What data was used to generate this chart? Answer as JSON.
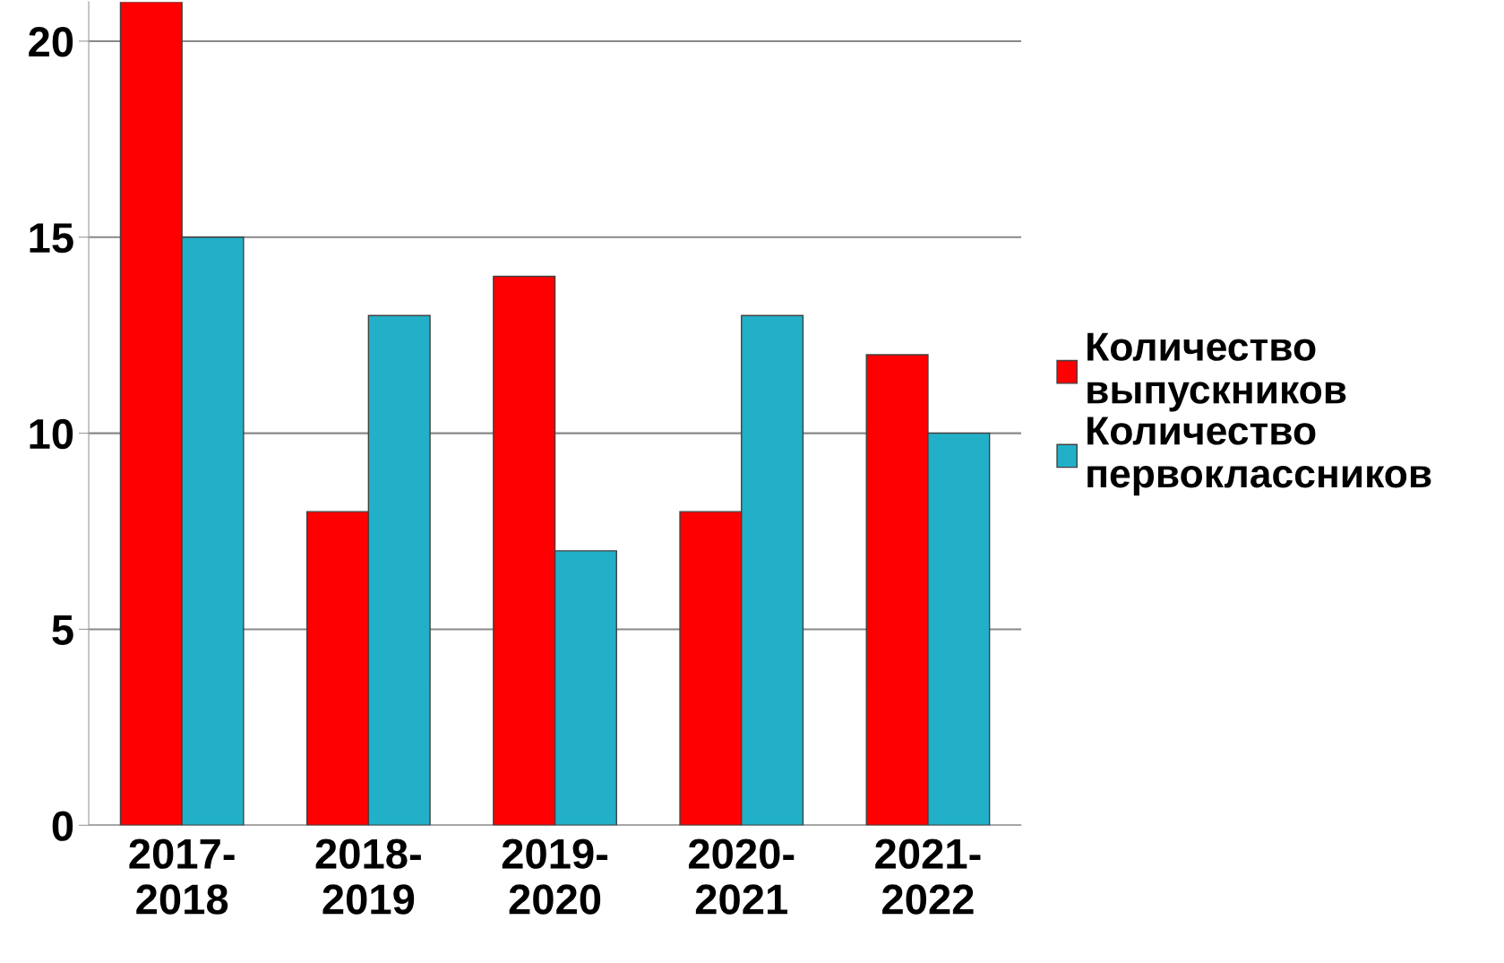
{
  "chart_data": {
    "type": "bar",
    "categories": [
      "2017-\n2018",
      "2018-\n2019",
      "2019-\n2020",
      "2020-\n2021",
      "2021-\n2022"
    ],
    "series": [
      {
        "name": "Количество выпускников",
        "color": "#ff0000",
        "values": [
          21,
          8,
          14,
          8,
          12
        ]
      },
      {
        "name": "Количество первоклассников",
        "color": "#22b0c8",
        "values": [
          15,
          13,
          7,
          13,
          10
        ]
      }
    ],
    "ylim": [
      0,
      21
    ],
    "yticks": [
      0,
      5,
      10,
      15,
      20
    ],
    "grid": "y",
    "legend": "right"
  }
}
